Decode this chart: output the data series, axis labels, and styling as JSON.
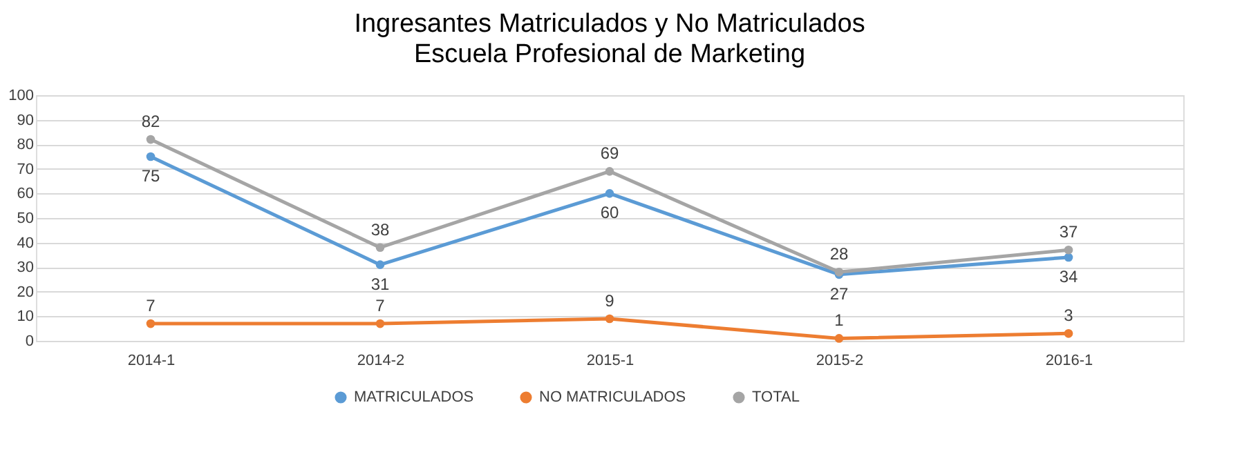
{
  "chart_data": {
    "type": "line",
    "title": "Ingresantes Matriculados y No Matriculados",
    "subtitle": "Escuela Profesional de Marketing",
    "categories": [
      "2014-1",
      "2014-2",
      "2015-1",
      "2015-2",
      "2016-1"
    ],
    "series": [
      {
        "name": "MATRICULADOS",
        "color": "#5b9bd5",
        "values": [
          75,
          31,
          60,
          27,
          34
        ]
      },
      {
        "name": "NO MATRICULADOS",
        "color": "#ed7d31",
        "values": [
          7,
          7,
          9,
          1,
          3
        ]
      },
      {
        "name": "TOTAL",
        "color": "#a5a5a5",
        "values": [
          82,
          38,
          69,
          28,
          37
        ]
      }
    ],
    "ylim": [
      0,
      100
    ],
    "yticks": [
      0,
      10,
      20,
      30,
      40,
      50,
      60,
      70,
      80,
      90,
      100
    ],
    "grid": "y",
    "legend": "bottom",
    "marker": "circle",
    "line_style": "solid",
    "data_labels": true
  }
}
